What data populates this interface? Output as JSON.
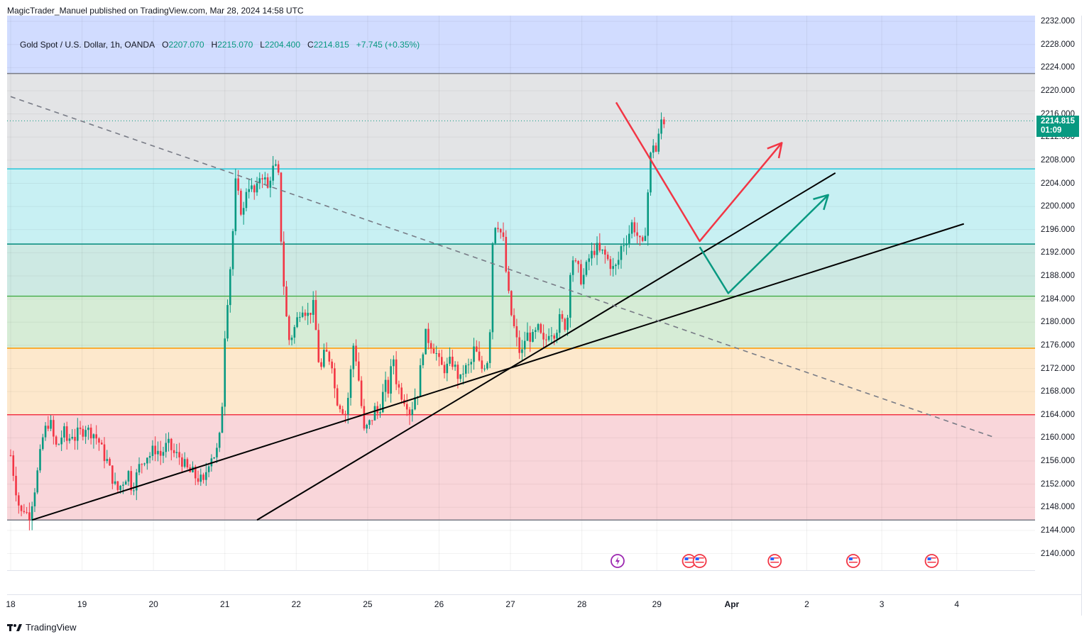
{
  "publisher": "MagicTrader_Manuel published on TradingView.com, Mar 28, 2024 14:58 UTC",
  "legend": {
    "symbol": "Gold Spot / U.S. Dollar, 1h, OANDA",
    "open_label": "O",
    "open": "2207.070",
    "high_label": "H",
    "high": "2215.070",
    "low_label": "L",
    "low": "2204.400",
    "close_label": "C",
    "close": "2214.815",
    "change": "+7.745 (+0.35%)"
  },
  "last_price": {
    "price": "2214.815",
    "countdown": "01:09"
  },
  "footer_brand": "TradingView",
  "colors": {
    "up": "#089981",
    "down": "#f23645",
    "zone_top": "#d1dcff",
    "zone_grey": "#e3e4e6",
    "zone_cyan": "#c8f0f3",
    "zone_teal": "#cde9e3",
    "zone_green": "#d6ecd6",
    "zone_orange": "#fde8cc",
    "zone_red": "#f9d6da"
  },
  "chart_data": {
    "type": "candlestick",
    "symbol": "XAUUSD",
    "timeframe": "1h",
    "ylim": [
      2137,
      2233
    ],
    "y_ticks": [
      "2140.000",
      "2144.000",
      "2148.000",
      "2152.000",
      "2156.000",
      "2160.000",
      "2164.000",
      "2168.000",
      "2172.000",
      "2176.000",
      "2180.000",
      "2184.000",
      "2188.000",
      "2192.000",
      "2196.000",
      "2200.000",
      "2204.000",
      "2208.000",
      "2212.000",
      "2216.000",
      "2220.000",
      "2224.000",
      "2228.000",
      "2232.000"
    ],
    "x_labels": [
      {
        "label": "18",
        "x": 0
      },
      {
        "label": "19",
        "x": 100
      },
      {
        "label": "20",
        "x": 200
      },
      {
        "label": "21",
        "x": 300
      },
      {
        "label": "22",
        "x": 400
      },
      {
        "label": "25",
        "x": 500
      },
      {
        "label": "26",
        "x": 600
      },
      {
        "label": "27",
        "x": 700
      },
      {
        "label": "28",
        "x": 800
      },
      {
        "label": "29",
        "x": 905
      },
      {
        "label": "Apr",
        "x": 1010
      },
      {
        "label": "2",
        "x": 1115
      },
      {
        "label": "3",
        "x": 1220
      },
      {
        "label": "4",
        "x": 1325
      }
    ],
    "x_range": [
      0,
      1375
    ],
    "levels": [
      {
        "price": 2223.0,
        "color": "#787b86"
      },
      {
        "price": 2206.5,
        "color": "#26c6da"
      },
      {
        "price": 2193.5,
        "color": "#00897b"
      },
      {
        "price": 2184.5,
        "color": "#4caf50"
      },
      {
        "price": 2175.5,
        "color": "#ff9800"
      },
      {
        "price": 2164.0,
        "color": "#f23645"
      },
      {
        "price": 2145.8,
        "color": "#787b86"
      }
    ],
    "zones": [
      {
        "from": 2223.0,
        "to": 2233,
        "color": "zone_top"
      },
      {
        "from": 2206.5,
        "to": 2223.0,
        "color": "zone_grey"
      },
      {
        "from": 2193.5,
        "to": 2206.5,
        "color": "zone_cyan"
      },
      {
        "from": 2184.5,
        "to": 2193.5,
        "color": "zone_teal"
      },
      {
        "from": 2175.5,
        "to": 2184.5,
        "color": "zone_green"
      },
      {
        "from": 2164.0,
        "to": 2175.5,
        "color": "zone_orange"
      },
      {
        "from": 2145.8,
        "to": 2164.0,
        "color": "zone_red"
      }
    ],
    "trendlines": [
      {
        "x1": 30,
        "y1": 2145.8,
        "x2": 1335,
        "y2": 2197.0,
        "color": "#000000",
        "style": "solid"
      },
      {
        "x1": 345,
        "y1": 2145.8,
        "x2": 1155,
        "y2": 2205.8,
        "color": "#000000",
        "style": "solid"
      },
      {
        "x1": 0,
        "y1": 2219.0,
        "x2": 1375,
        "y2": 2160.2,
        "color": "#787b86",
        "style": "dashed"
      }
    ],
    "projections": [
      {
        "points": [
          [
            848,
            2218.0
          ],
          [
            965,
            2194.0
          ],
          [
            1080,
            2211.0
          ]
        ],
        "color": "#f23645"
      },
      {
        "points": [
          [
            965,
            2193.0
          ],
          [
            1005,
            2185.0
          ],
          [
            1145,
            2202.0
          ]
        ],
        "color": "#089981"
      }
    ],
    "events": [
      {
        "x": 850,
        "type": "earnings-icon"
      },
      {
        "x": 950,
        "type": "us-flag-icon"
      },
      {
        "x": 965,
        "type": "us-flag-icon"
      },
      {
        "x": 1070,
        "type": "us-flag-icon"
      },
      {
        "x": 1180,
        "type": "us-flag-icon"
      },
      {
        "x": 1290,
        "type": "us-flag-icon"
      }
    ],
    "last_close": 2214.815,
    "anchors": [
      [
        0,
        2157
      ],
      [
        5,
        2153
      ],
      [
        10,
        2149
      ],
      [
        15,
        2147
      ],
      [
        20,
        2148
      ],
      [
        25,
        2146
      ],
      [
        30,
        2149
      ],
      [
        35,
        2152
      ],
      [
        40,
        2156
      ],
      [
        45,
        2160
      ],
      [
        50,
        2162
      ],
      [
        55,
        2163
      ],
      [
        60,
        2160
      ],
      [
        65,
        2158
      ],
      [
        70,
        2160
      ],
      [
        75,
        2161
      ],
      [
        80,
        2159
      ],
      [
        85,
        2161
      ],
      [
        90,
        2160
      ],
      [
        95,
        2161
      ],
      [
        100,
        2161
      ],
      [
        105,
        2162
      ],
      [
        110,
        2161
      ],
      [
        115,
        2161
      ],
      [
        120,
        2160
      ],
      [
        125,
        2159
      ],
      [
        130,
        2157
      ],
      [
        135,
        2156
      ],
      [
        140,
        2154
      ],
      [
        145,
        2152
      ],
      [
        150,
        2151
      ],
      [
        155,
        2152
      ],
      [
        160,
        2153
      ],
      [
        165,
        2154
      ],
      [
        170,
        2151
      ],
      [
        175,
        2153
      ],
      [
        180,
        2155
      ],
      [
        185,
        2156
      ],
      [
        190,
        2157
      ],
      [
        195,
        2157
      ],
      [
        200,
        2158
      ],
      [
        205,
        2158
      ],
      [
        210,
        2157
      ],
      [
        215,
        2158
      ],
      [
        220,
        2159
      ],
      [
        225,
        2158
      ],
      [
        230,
        2157
      ],
      [
        235,
        2157
      ],
      [
        240,
        2156
      ],
      [
        245,
        2155
      ],
      [
        250,
        2154
      ],
      [
        255,
        2154
      ],
      [
        260,
        2153
      ],
      [
        265,
        2153
      ],
      [
        270,
        2152
      ],
      [
        275,
        2155
      ],
      [
        280,
        2157
      ],
      [
        285,
        2157
      ],
      [
        290,
        2158
      ],
      [
        295,
        2162
      ],
      [
        300,
        2178
      ],
      [
        305,
        2186
      ],
      [
        310,
        2193
      ],
      [
        315,
        2204
      ],
      [
        320,
        2201
      ],
      [
        325,
        2198
      ],
      [
        330,
        2203
      ],
      [
        335,
        2204
      ],
      [
        340,
        2202
      ],
      [
        345,
        2203
      ],
      [
        350,
        2206
      ],
      [
        355,
        2205
      ],
      [
        360,
        2203
      ],
      [
        365,
        2206
      ],
      [
        370,
        2207
      ],
      [
        375,
        2205
      ],
      [
        380,
        2191
      ],
      [
        385,
        2182
      ],
      [
        390,
        2177
      ],
      [
        395,
        2178
      ],
      [
        400,
        2180
      ],
      [
        405,
        2182
      ],
      [
        410,
        2183
      ],
      [
        415,
        2181
      ],
      [
        420,
        2182
      ],
      [
        425,
        2183
      ],
      [
        430,
        2174
      ],
      [
        435,
        2172
      ],
      [
        440,
        2175
      ],
      [
        445,
        2174
      ],
      [
        450,
        2173
      ],
      [
        455,
        2167
      ],
      [
        460,
        2166
      ],
      [
        465,
        2165
      ],
      [
        470,
        2164
      ],
      [
        475,
        2170
      ],
      [
        480,
        2176
      ],
      [
        485,
        2173
      ],
      [
        490,
        2167
      ],
      [
        495,
        2161
      ],
      [
        500,
        2162
      ],
      [
        505,
        2163
      ],
      [
        510,
        2165
      ],
      [
        515,
        2164
      ],
      [
        520,
        2167
      ],
      [
        525,
        2169
      ],
      [
        530,
        2168
      ],
      [
        535,
        2175
      ],
      [
        540,
        2170
      ],
      [
        545,
        2168
      ],
      [
        550,
        2167
      ],
      [
        555,
        2166
      ],
      [
        560,
        2164
      ],
      [
        565,
        2167
      ],
      [
        570,
        2168
      ],
      [
        575,
        2173
      ],
      [
        580,
        2178
      ],
      [
        585,
        2177
      ],
      [
        590,
        2176
      ],
      [
        595,
        2175
      ],
      [
        600,
        2173
      ],
      [
        605,
        2172
      ],
      [
        610,
        2172
      ],
      [
        615,
        2173
      ],
      [
        620,
        2173
      ],
      [
        625,
        2171
      ],
      [
        630,
        2170
      ],
      [
        635,
        2172
      ],
      [
        640,
        2172
      ],
      [
        645,
        2173
      ],
      [
        650,
        2176
      ],
      [
        655,
        2173
      ],
      [
        660,
        2172
      ],
      [
        665,
        2173
      ],
      [
        670,
        2174
      ],
      [
        675,
        2194
      ],
      [
        680,
        2198
      ],
      [
        685,
        2196
      ],
      [
        690,
        2194
      ],
      [
        695,
        2187
      ],
      [
        700,
        2182
      ],
      [
        705,
        2179
      ],
      [
        710,
        2176
      ],
      [
        715,
        2174
      ],
      [
        720,
        2177
      ],
      [
        725,
        2178
      ],
      [
        730,
        2177
      ],
      [
        735,
        2178
      ],
      [
        740,
        2179
      ],
      [
        745,
        2176
      ],
      [
        750,
        2177
      ],
      [
        755,
        2179
      ],
      [
        760,
        2178
      ],
      [
        765,
        2179
      ],
      [
        770,
        2181
      ],
      [
        775,
        2179
      ],
      [
        780,
        2181
      ],
      [
        785,
        2192
      ],
      [
        790,
        2190
      ],
      [
        795,
        2189
      ],
      [
        800,
        2187
      ],
      [
        805,
        2189
      ],
      [
        810,
        2191
      ],
      [
        815,
        2192
      ],
      [
        820,
        2193
      ],
      [
        825,
        2192
      ],
      [
        830,
        2192
      ],
      [
        835,
        2191
      ],
      [
        840,
        2190
      ],
      [
        845,
        2189
      ],
      [
        850,
        2190
      ],
      [
        855,
        2193
      ],
      [
        860,
        2194
      ],
      [
        865,
        2195
      ],
      [
        870,
        2197
      ],
      [
        875,
        2196
      ],
      [
        880,
        2194
      ],
      [
        885,
        2193
      ],
      [
        890,
        2197
      ],
      [
        895,
        2208
      ],
      [
        900,
        2211
      ],
      [
        905,
        2209
      ],
      [
        910,
        2215
      ],
      [
        915,
        2214.8
      ]
    ]
  }
}
